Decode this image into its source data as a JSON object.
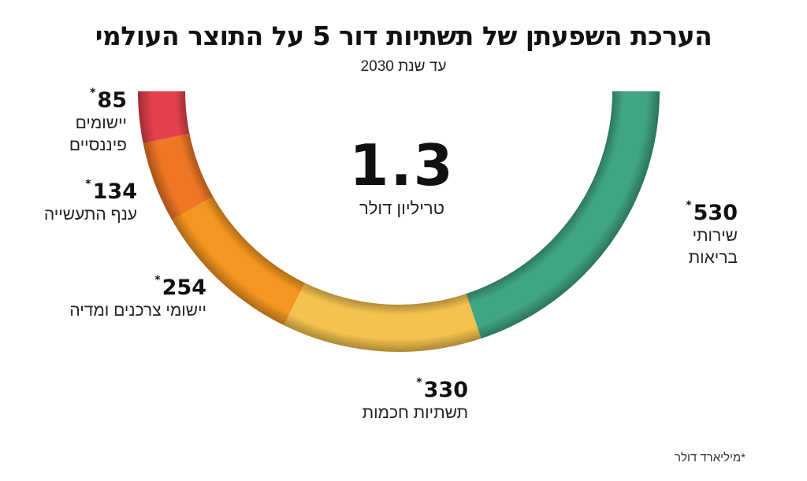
{
  "header": {
    "title": "הערכת השפעתן של תשתיות דור 5 על התוצר העולמי",
    "subtitle": "עד שנת 2030"
  },
  "center": {
    "value": "1.3",
    "unit": "טריליון דולר"
  },
  "labels": [
    {
      "value": "85",
      "star": "*",
      "name_line1": "יישומים",
      "name_line2": "פיננסיים"
    },
    {
      "value": "134",
      "star": "*",
      "name_line1": "ענף התעשייה",
      "name_line2": ""
    },
    {
      "value": "254",
      "star": "*",
      "name_line1": "יישומי צרכנים ומדיה",
      "name_line2": ""
    },
    {
      "value": "330",
      "star": "*",
      "name_line1": "תשתיות חכמות",
      "name_line2": ""
    },
    {
      "value": "530",
      "star": "*",
      "name_line1": "שירותי",
      "name_line2": "בריאות"
    }
  ],
  "footnote": "*מיליארד דולר",
  "colors": {
    "financial": "#e5414c",
    "industry": "#ee7624",
    "consumer": "#f4961f",
    "infrastructure": "#f5c24f",
    "health": "#3fa584"
  },
  "chart_data": {
    "type": "pie",
    "style": "half-donut (semicircle arc, opening upward)",
    "title": "הערכת השפעתן של תשתיות דור 5 על התוצר העולמי",
    "subtitle": "עד שנת 2030",
    "unit": "מיליארד דולר",
    "total_label": "1.3 טריליון דולר",
    "categories": [
      "יישומים פיננסיים",
      "ענף התעשייה",
      "יישומי צרכנים ומדיה",
      "תשתיות חכמות",
      "שירותי בריאות"
    ],
    "values": [
      85,
      134,
      254,
      330,
      530
    ],
    "colors": [
      "#e5414c",
      "#ee7624",
      "#f4961f",
      "#f5c24f",
      "#3fa584"
    ],
    "order": "clockwise from top-left to top-right"
  }
}
